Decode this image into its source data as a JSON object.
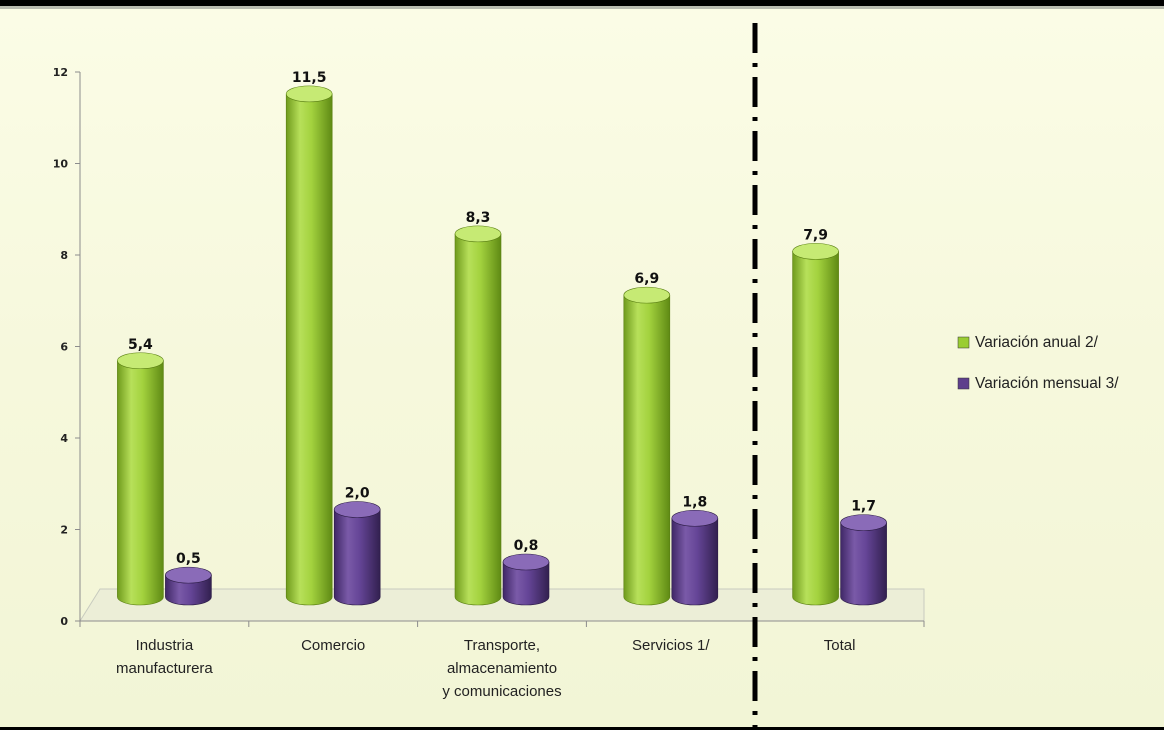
{
  "chart_data": {
    "type": "bar",
    "categories": [
      "Industria manufacturera",
      "Comercio",
      "Transporte, almacenamiento y comunicaciones",
      "Servicios 1/",
      "Total"
    ],
    "category_lines": [
      [
        "Industria",
        "manufacturera"
      ],
      [
        "Comercio"
      ],
      [
        "Transporte,",
        "almacenamiento",
        "y comunicaciones"
      ],
      [
        "Servicios 1/"
      ],
      [
        "Total"
      ]
    ],
    "series": [
      {
        "name": "Variación anual 2/",
        "values": [
          5.4,
          11.5,
          8.3,
          6.9,
          7.9
        ],
        "labels": [
          "5,4",
          "11,5",
          "8,3",
          "6,9",
          "7,9"
        ],
        "color": "#9acd32"
      },
      {
        "name": "Variación mensual 3/",
        "values": [
          0.5,
          2.0,
          0.8,
          1.8,
          1.7
        ],
        "labels": [
          "0,5",
          "2,0",
          "0,8",
          "1,8",
          "1,7"
        ],
        "color": "#5e3f8c"
      }
    ],
    "ylim": [
      0,
      12
    ],
    "yticks": [
      0,
      2,
      4,
      6,
      8,
      10,
      12
    ],
    "title": "",
    "xlabel": "",
    "ylabel": "",
    "legend_position": "right",
    "grid": false,
    "separator": "dashed vertical line between Servicios 1/ and Total"
  }
}
